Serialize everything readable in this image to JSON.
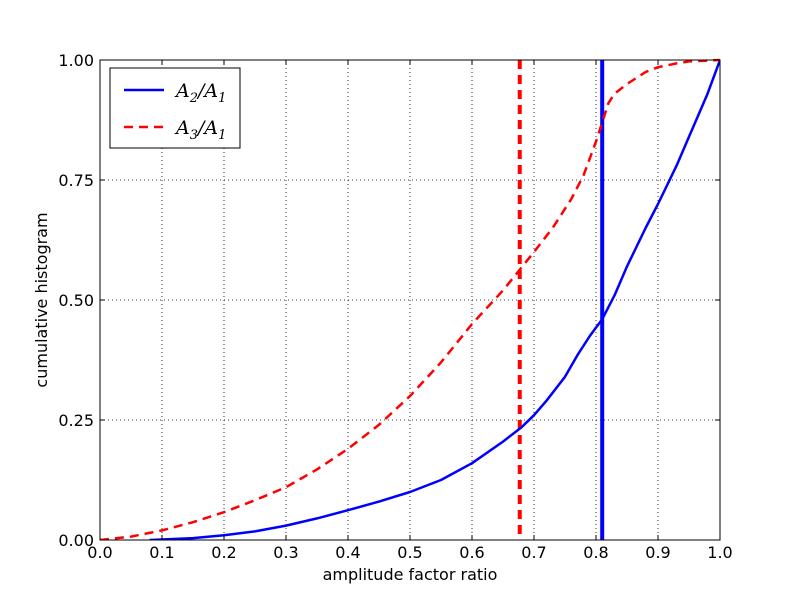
{
  "chart_data": {
    "type": "line",
    "title": "",
    "xlabel": "amplitude factor ratio",
    "ylabel": "cumulative histogram",
    "xlim": [
      0.0,
      1.0
    ],
    "ylim": [
      0.0,
      1.0
    ],
    "x_ticks": [
      0.0,
      0.1,
      0.2,
      0.3,
      0.4,
      0.5,
      0.6,
      0.7,
      0.8,
      0.9,
      1.0
    ],
    "x_tick_labels": [
      "0.0",
      "0.1",
      "0.2",
      "0.3",
      "0.4",
      "0.5",
      "0.6",
      "0.7",
      "0.8",
      "0.9",
      "1.0"
    ],
    "y_ticks": [
      0.0,
      0.25,
      0.5,
      0.75,
      1.0
    ],
    "y_tick_labels": [
      "0.00",
      "0.25",
      "0.50",
      "0.75",
      "1.00"
    ],
    "grid": true,
    "legend_position": "top-left",
    "series": [
      {
        "name": "A2/A1",
        "name_main": "A",
        "name_sub": "2",
        "name_den": "A",
        "name_den_sub": "1",
        "color": "#0000ff",
        "style": "solid",
        "x": [
          0.08,
          0.1,
          0.15,
          0.2,
          0.25,
          0.3,
          0.35,
          0.4,
          0.45,
          0.5,
          0.55,
          0.6,
          0.65,
          0.68,
          0.7,
          0.72,
          0.75,
          0.77,
          0.79,
          0.81,
          0.83,
          0.85,
          0.88,
          0.9,
          0.93,
          0.95,
          0.98,
          1.0
        ],
        "y": [
          0.0,
          0.001,
          0.004,
          0.01,
          0.018,
          0.03,
          0.045,
          0.062,
          0.08,
          0.1,
          0.125,
          0.16,
          0.205,
          0.235,
          0.26,
          0.29,
          0.34,
          0.385,
          0.425,
          0.46,
          0.51,
          0.57,
          0.65,
          0.7,
          0.78,
          0.84,
          0.93,
          1.0
        ]
      },
      {
        "name": "A3/A1",
        "name_main": "A",
        "name_sub": "3",
        "name_den": "A",
        "name_den_sub": "1",
        "color": "#ff0000",
        "style": "dashed",
        "x": [
          0.0,
          0.05,
          0.1,
          0.15,
          0.2,
          0.25,
          0.3,
          0.35,
          0.4,
          0.45,
          0.5,
          0.55,
          0.6,
          0.65,
          0.7,
          0.73,
          0.76,
          0.78,
          0.8,
          0.81,
          0.82,
          0.83,
          0.85,
          0.88,
          0.9,
          0.93,
          0.95,
          1.0
        ],
        "y": [
          0.0,
          0.007,
          0.02,
          0.037,
          0.058,
          0.083,
          0.11,
          0.147,
          0.19,
          0.24,
          0.3,
          0.37,
          0.45,
          0.52,
          0.6,
          0.65,
          0.71,
          0.76,
          0.83,
          0.87,
          0.91,
          0.93,
          0.95,
          0.975,
          0.985,
          0.993,
          0.997,
          1.0
        ]
      }
    ],
    "vertical_lines": [
      {
        "x": 0.81,
        "color": "#0000ff",
        "style": "solid"
      },
      {
        "x": 0.677,
        "color": "#ff0000",
        "style": "dashed"
      }
    ]
  }
}
